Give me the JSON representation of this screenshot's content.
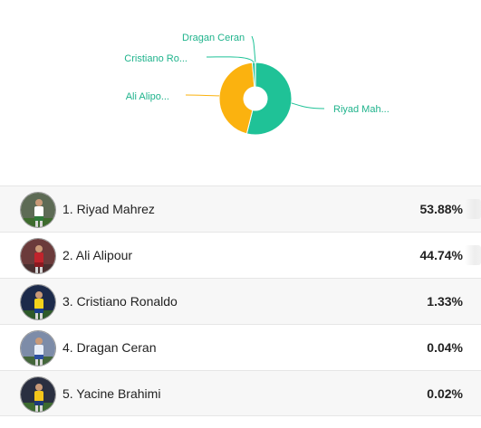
{
  "chart_data": {
    "type": "pie",
    "donut": true,
    "slices": [
      {
        "label": "Riyad Mah...",
        "value": 53.88,
        "color": "#1fc297"
      },
      {
        "label": "Ali Alipo...",
        "value": 44.74,
        "color": "#fbb20f"
      },
      {
        "label": "Cristiano Ro...",
        "value": 1.33,
        "color": "#1fc297"
      },
      {
        "label": "Dragan Ceran",
        "value": 0.04,
        "color": "#1fc297"
      },
      {
        "label": "",
        "value": 0.02,
        "color": "#1fc297"
      }
    ],
    "label_color": "#1fb38c"
  },
  "rankings": [
    {
      "rank_name": "1. Riyad Mahrez",
      "percent": "53.88%"
    },
    {
      "rank_name": "2. Ali Alipour",
      "percent": "44.74%"
    },
    {
      "rank_name": "3. Cristiano Ronaldo",
      "percent": "1.33%"
    },
    {
      "rank_name": "4. Dragan Ceran",
      "percent": "0.04%"
    },
    {
      "rank_name": "5. Yacine Brahimi",
      "percent": "0.02%"
    }
  ],
  "avatar_palettes": [
    {
      "sky": "#5d6b55",
      "shirt": "#ffffff",
      "accent": "#2f7a3a",
      "ground": "#3e6b2e"
    },
    {
      "sky": "#6b3b3b",
      "shirt": "#c0242c",
      "accent": "#8a1a20",
      "ground": "#4a3030"
    },
    {
      "sky": "#1c2a4a",
      "shirt": "#f2d21b",
      "accent": "#1a3f8a",
      "ground": "#2e5a2a"
    },
    {
      "sky": "#7d8ca8",
      "shirt": "#e8eef8",
      "accent": "#2c4fa0",
      "ground": "#44663a"
    },
    {
      "sky": "#2a2f40",
      "shirt": "#f3c51a",
      "accent": "#1d3a7a",
      "ground": "#3d6a30"
    }
  ]
}
